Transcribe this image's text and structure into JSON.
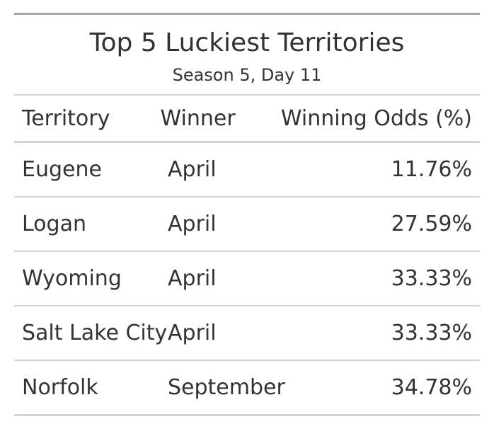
{
  "table": {
    "title": "Top 5 Luckiest Territories",
    "subtitle": "Season 5, Day 11",
    "columns": [
      "Territory",
      "Winner",
      "Winning Odds (%)"
    ],
    "rows": [
      {
        "territory": "Eugene",
        "winner": "April",
        "odds": "11.76%"
      },
      {
        "territory": "Logan",
        "winner": "April",
        "odds": "27.59%"
      },
      {
        "territory": "Wyoming",
        "winner": "April",
        "odds": "33.33%"
      },
      {
        "territory": "Salt Lake City",
        "winner": "April",
        "odds": "33.33%"
      },
      {
        "territory": "Norfolk",
        "winner": "September",
        "odds": "34.78%"
      }
    ]
  }
}
